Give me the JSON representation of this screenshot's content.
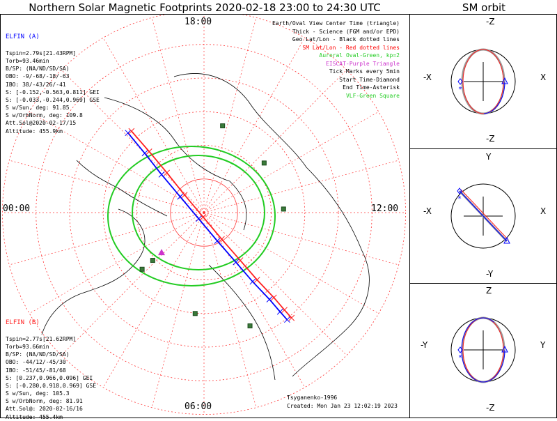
{
  "title": "Northern Solar Magnetic Footprints 2020-02-18 23:00 to 24:30 UTC",
  "sm_orbit_title": "SM orbit",
  "colors": {
    "elfin_a": "#0000ff",
    "elfin_b": "#ff2020",
    "sm_grid": "#ff3333",
    "geo_grid": "#000000",
    "auroral_oval": "#22cc22",
    "eiscat": "#cc33cc",
    "vlf": "#2e7d32",
    "orbit_gray": "#999999"
  },
  "elfin_a": {
    "name": "ELFIN (A)",
    "lines": [
      "Tspin=2.79s[21.43RPM]",
      "Torb=93.46min",
      "B/SP: (NA/ND/SD/SA)",
      "OBO: -9/-68/-18/-63",
      "IBO: 38/-43/26/-41",
      "S: [-0.152,-0.563,0.811] GEI",
      "S: [-0.033,-0.244,0.969] GSE",
      "S w/Sun, deg: 91.85",
      "S w/OrbNorm, deg: 109.8",
      "Att.Sol@2020-02-17/15",
      "Altitude: 455.9km"
    ]
  },
  "elfin_b": {
    "name": "ELFIN (B)",
    "lines": [
      "Tspin=2.77s[21.62RPM]",
      "Torb=93.66min",
      "B/SP: (NA/ND/SD/SA)",
      "OBO: -44/12/-45/30",
      "IBO: -51/45/-81/68",
      "S: [0.237,0.966,0.096] GEI",
      "S: [-0.280,0.918,0.969] GSE",
      "S w/Sun, deg: 105.3",
      "S w/OrbNorm, deg: 81.91",
      "Att.Sol@: 2020-02-16/16",
      "Altitude: 455.4km"
    ]
  },
  "legend": [
    {
      "text": "Earth/Oval View Center Time (triangle)",
      "color": "#000000"
    },
    {
      "text": "Thick - Science (FGM and/or EPD)",
      "color": "#000000"
    },
    {
      "text": "Geo Lat/Lon - Black dotted lines",
      "color": "#000000"
    },
    {
      "text": "SM Lat/Lon - Red dotted lines",
      "color": "#ff0000"
    },
    {
      "text": "Auroral Oval-Green, kp=2",
      "color": "#22cc22"
    },
    {
      "text": "EISCAT-Purple Triangle",
      "color": "#cc33cc"
    },
    {
      "text": "Tick Marks every 5min",
      "color": "#000000"
    },
    {
      "text": "Start Time-Diamond",
      "color": "#000000"
    },
    {
      "text": "End Time-Asterisk",
      "color": "#000000"
    },
    {
      "text": "VLF-Green Square",
      "color": "#22cc22"
    }
  ],
  "mlt_labels": {
    "top": "18:00",
    "left": "00:00",
    "right": "12:00",
    "bottom": "06:00"
  },
  "credit": "Tsyganenko-1996",
  "created": "Created: Mon Jan 23 12:02:19 2023",
  "panels": [
    {
      "top": "-Z",
      "bottom": "-Z",
      "left": "-X",
      "right": "X"
    },
    {
      "top": "Y",
      "bottom": "-Y",
      "left": "-X",
      "right": "X"
    },
    {
      "top": "Z",
      "bottom": "-Z",
      "left": "-Y",
      "right": "Y"
    }
  ],
  "chart_data": {
    "type": "scatter",
    "title": "Northern Solar Magnetic Footprints 2020-02-18 23:00 to 24:30 UTC",
    "projection": "polar, SM magnetic latitude 90 at center, MLT around rim",
    "mlt_ticks": [
      "18:00",
      "00:00",
      "12:00",
      "06:00"
    ],
    "series": [
      {
        "name": "ELFIN (A)",
        "color": "#0000ff",
        "x": [
          -0.86,
          -0.67,
          -0.48,
          -0.27,
          -0.06,
          0.15,
          0.36,
          0.55,
          0.74,
          0.86,
          0.94
        ],
        "y": [
          0.9,
          0.67,
          0.43,
          0.18,
          -0.07,
          -0.32,
          -0.56,
          -0.78,
          -0.98,
          -1.12,
          -1.21
        ]
      },
      {
        "name": "ELFIN (B)",
        "color": "#ff2020",
        "x": [
          -0.82,
          -0.62,
          -0.42,
          -0.22,
          -0.01,
          0.2,
          0.41,
          0.6,
          0.79,
          0.91,
          0.99
        ],
        "y": [
          0.92,
          0.69,
          0.45,
          0.2,
          -0.05,
          -0.3,
          -0.54,
          -0.76,
          -0.96,
          -1.1,
          -1.19
        ]
      }
    ],
    "auroral_oval_kp": 2,
    "markers": {
      "eiscat": {
        "x": -0.48,
        "y": -0.45
      },
      "vlf": [
        {
          "x": 0.21,
          "y": 0.98
        },
        {
          "x": 0.68,
          "y": 0.56
        },
        {
          "x": 0.9,
          "y": 0.04
        },
        {
          "x": -0.58,
          "y": -0.54
        },
        {
          "x": -0.7,
          "y": -0.64
        },
        {
          "x": -0.1,
          "y": -1.14
        },
        {
          "x": 0.52,
          "y": -1.28
        }
      ]
    }
  }
}
